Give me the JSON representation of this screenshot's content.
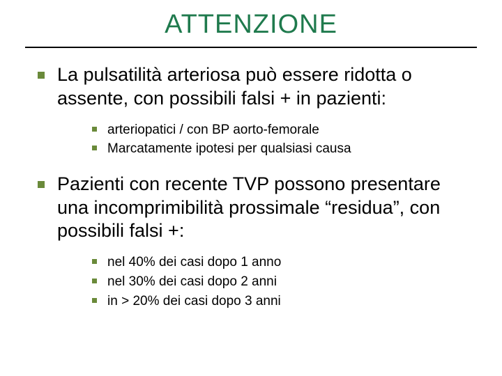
{
  "title": {
    "text": "ATTENZIONE",
    "color": "#1f7a4d"
  },
  "bullet_color": "#6a8a3a",
  "rule_color": "#000000",
  "items": [
    {
      "text": "La pulsatilità arteriosa può essere ridotta o assente, con possibili falsi + in pazienti:",
      "sub": [
        "arteriopatici / con BP aorto-femorale",
        "Marcatamente ipotesi per qualsiasi causa"
      ]
    },
    {
      "text": "Pazienti con recente TVP possono presentare una incomprimibilità prossimale “residua”, con possibili falsi +:",
      "sub": [
        "nel 40% dei casi dopo 1 anno",
        "nel 30% dei casi dopo 2 anni",
        "in > 20% dei casi dopo 3 anni"
      ]
    }
  ]
}
